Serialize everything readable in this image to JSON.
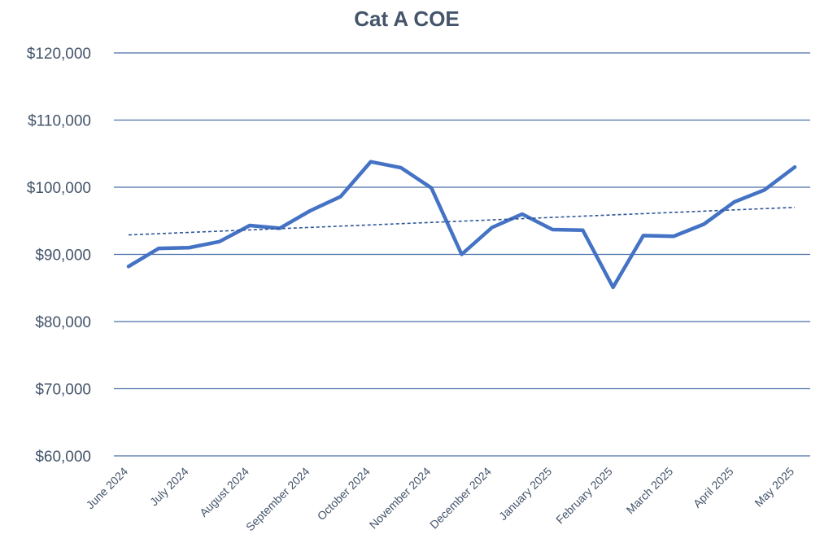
{
  "colors": {
    "line": "#4472c4",
    "grid": "#4a6fa8",
    "text": "#44546a",
    "trend": "#2f5597"
  },
  "chart_data": {
    "type": "line",
    "title": "Cat A COE",
    "xlabel": "",
    "ylabel": "",
    "ylim": [
      60000,
      120000
    ],
    "yticks": [
      60000,
      70000,
      80000,
      90000,
      100000,
      110000,
      120000
    ],
    "ytick_labels": [
      "$60,000",
      "$70,000",
      "$80,000",
      "$90,000",
      "$100,000",
      "$110,000",
      "$120,000"
    ],
    "xtick_labels": [
      "June 2024",
      "July 2024",
      "August 2024",
      "September 2024",
      "October 2024",
      "November 2024",
      "December 2024",
      "January 2025",
      "February 2025",
      "March 2025",
      "April 2025",
      "May 2025"
    ],
    "grid": true,
    "legend": "none",
    "series": [
      {
        "x": [
          "June 2024",
          "",
          "July 2024",
          "",
          "August 2024",
          "",
          "September 2024",
          "",
          "October 2024",
          "",
          "November 2024",
          "",
          "December 2024",
          "",
          "January 2025",
          "",
          "February 2025",
          "",
          "March 2025",
          "",
          "April 2025",
          "",
          "May 2025"
        ],
        "values": [
          88200,
          90900,
          91000,
          91900,
          94300,
          93900,
          96500,
          98600,
          103800,
          102900,
          99900,
          90000,
          94000,
          96000,
          93700,
          93600,
          85100,
          92800,
          92700,
          94500,
          97800,
          99600,
          103000
        ],
        "style": "solid"
      },
      {
        "x": [
          "June 2024",
          "May 2025"
        ],
        "values": [
          92900,
          97000
        ],
        "style": "dashed",
        "role": "linear trendline"
      }
    ]
  }
}
